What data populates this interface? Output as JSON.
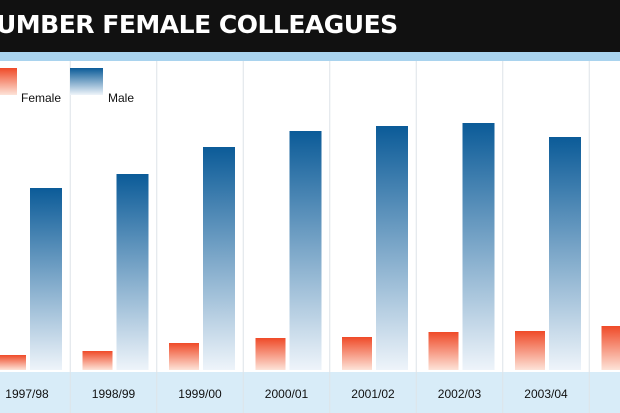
{
  "chart_data": {
    "type": "bar",
    "title": "UMBER FEMALE COLLEAGUES",
    "categories": [
      "1997/98",
      "1998/99",
      "1999/00",
      "2000/01",
      "2001/02",
      "2002/03",
      "2003/04",
      null
    ],
    "series": [
      {
        "name": "Female",
        "color": "#ef4a28",
        "values": [
          15,
          19,
          27,
          32,
          33,
          38,
          39,
          44
        ]
      },
      {
        "name": "Male",
        "color": "#0b5b98",
        "values": [
          182,
          196,
          223,
          239,
          244,
          247,
          233,
          null
        ]
      }
    ]
  }
}
